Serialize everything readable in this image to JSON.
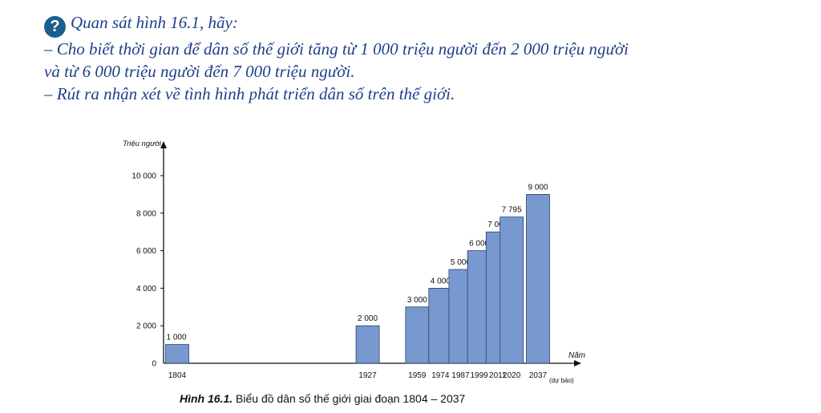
{
  "question": {
    "icon": "question-icon",
    "icon_glyph": "?",
    "heading": "Quan sát hình 16.1, hãy:",
    "line1": "– Cho biết thời gian để dân số thế giới tăng từ 1 000 triệu người đến 2 000 triệu người",
    "line2": "và từ 6 000 triệu người đến 7 000 triệu người.",
    "line3": "– Rút ra nhận xét về tình hình phát triển dân số trên thế giới."
  },
  "caption": {
    "label": "Hình 16.1.",
    "text": " Biểu đồ dân số thế giới giai đoạn 1804 – 2037"
  },
  "chart_data": {
    "type": "bar",
    "ylabel": "Triệu người",
    "xlabel": "Năm",
    "ylim": [
      0,
      10000
    ],
    "yticks": [
      0,
      2000,
      4000,
      6000,
      8000,
      10000
    ],
    "ytick_labels": [
      "0",
      "2 000",
      "4 000",
      "6 000",
      "8 000",
      "10 000"
    ],
    "x_axis": "proportional-years",
    "categories": [
      "1804",
      "1927",
      "1959",
      "1974",
      "1987",
      "1999",
      "2011",
      "2020",
      "2037"
    ],
    "values": [
      1000,
      2000,
      3000,
      4000,
      5000,
      6000,
      7000,
      7795,
      9000
    ],
    "value_labels": [
      "1 000",
      "2 000",
      "3 000",
      "4 000",
      "5 000",
      "6 000",
      "7 000",
      "7 795",
      "9 000"
    ],
    "annotations": [
      {
        "category": "2037",
        "text": "(dự báo)"
      }
    ],
    "bar_color": "#7899cf",
    "bar_border": "#2b3f6b",
    "grid": false
  }
}
